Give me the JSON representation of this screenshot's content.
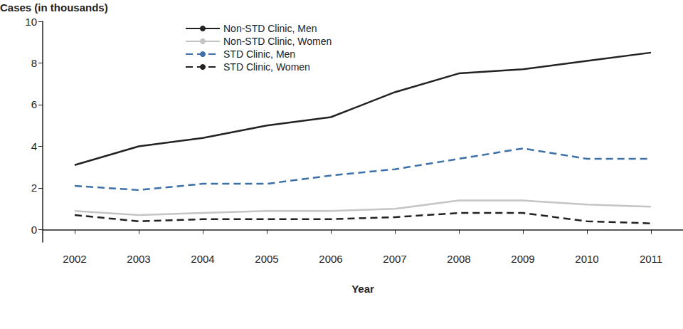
{
  "chart_data": {
    "type": "line",
    "y_label": "Cases (in thousands)",
    "x_label": "Year",
    "categories": [
      "2002",
      "2003",
      "2004",
      "2005",
      "2006",
      "2007",
      "2008",
      "2009",
      "2010",
      "2011"
    ],
    "series": [
      {
        "name": "Non-STD Clinic, Men",
        "color": "#222222",
        "line_style": "solid",
        "values": [
          3.1,
          4.0,
          4.4,
          5.0,
          5.4,
          6.6,
          7.5,
          7.7,
          8.1,
          8.5
        ]
      },
      {
        "name": "Non-STD Clinic, Women",
        "color": "#c4c4c4",
        "line_style": "solid",
        "values": [
          0.9,
          0.7,
          0.8,
          0.9,
          0.9,
          1.0,
          1.4,
          1.4,
          1.2,
          1.1
        ]
      },
      {
        "name": "STD Clinic, Men",
        "color": "#3d6fa8",
        "line_style": "dashed",
        "values": [
          2.1,
          1.9,
          2.2,
          2.2,
          2.6,
          2.9,
          3.4,
          3.9,
          3.4,
          3.4
        ]
      },
      {
        "name": "STD Clinic, Women",
        "color": "#222222",
        "line_style": "dashed",
        "values": [
          0.7,
          0.4,
          0.5,
          0.5,
          0.5,
          0.6,
          0.8,
          0.8,
          0.4,
          0.3
        ]
      }
    ],
    "ylim": [
      -0.6,
      10
    ],
    "yticks": [
      0,
      2,
      4,
      6,
      8,
      10
    ],
    "grid": false,
    "legend": "top-left"
  }
}
